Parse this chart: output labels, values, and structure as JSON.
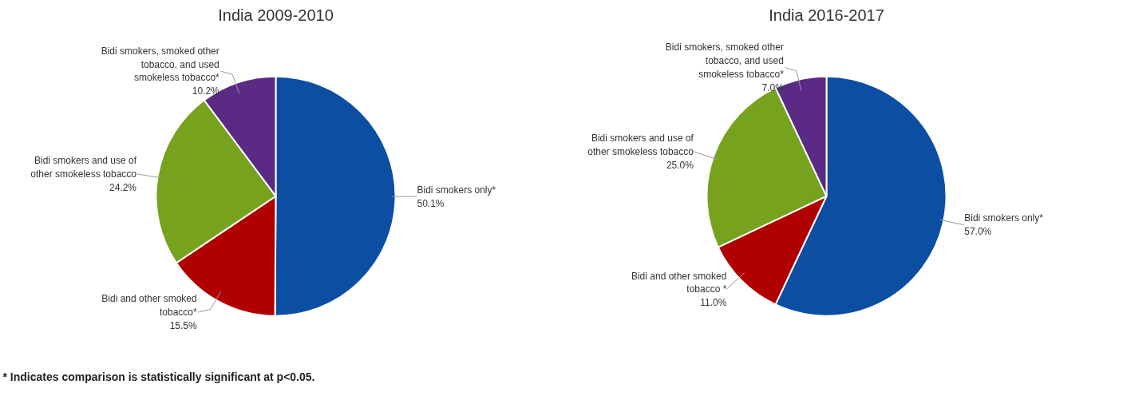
{
  "chart_data": [
    {
      "type": "pie",
      "title": "India 2009-2010",
      "categories": [
        "Bidi smokers only*",
        "Bidi and other smoked tobacco*",
        "Bidi smokers and use of other smokeless tobacco",
        "Bidi smokers, smoked other tobacco, and used smokeless tobacco*"
      ],
      "values": [
        50.1,
        15.5,
        24.2,
        10.2
      ],
      "value_labels": [
        "50.1%",
        "15.5%",
        "24.2%",
        "10.2%"
      ],
      "colors": [
        "#0b4ea2",
        "#b00000",
        "#76a21e",
        "#5a2a84"
      ],
      "annotations": [
        "* Indicates comparison is statistically significant at p<0.05."
      ]
    },
    {
      "type": "pie",
      "title": "India 2016-2017",
      "categories": [
        "Bidi smokers only*",
        "Bidi and other smoked tobacco *",
        "Bidi smokers and use of other smokeless tobacco",
        "Bidi smokers, smoked other tobacco, and used smokeless tobacco*"
      ],
      "values": [
        57.0,
        11.0,
        25.0,
        7.0
      ],
      "value_labels": [
        "57.0%",
        "11.0%",
        "25.0%",
        "7.0%"
      ],
      "colors": [
        "#0b4ea2",
        "#b00000",
        "#76a21e",
        "#5a2a84"
      ]
    }
  ]
}
